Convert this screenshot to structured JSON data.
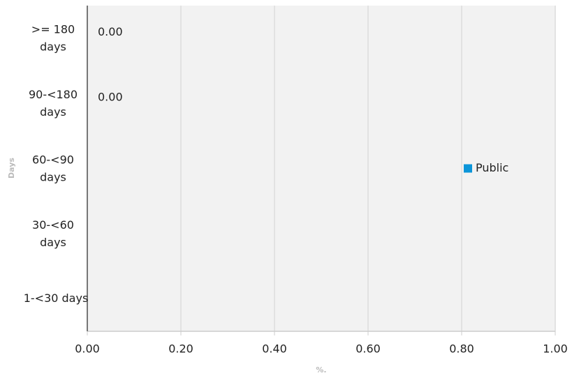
{
  "chart_data": {
    "type": "hbar",
    "categories": [
      ">= 180 days",
      "90-<180 days",
      "60-<90 days",
      "30-<60 days",
      "1-<30 days"
    ],
    "series": [
      {
        "name": "Public",
        "color": "#0b95d9",
        "values": [
          0,
          0,
          null,
          null,
          null
        ],
        "value_labels": [
          "0.00",
          "0.00",
          null,
          null,
          null
        ]
      }
    ],
    "xlim": [
      0,
      1
    ],
    "xticks": [
      {
        "value": 0,
        "label": "0.00"
      },
      {
        "value": 0.2,
        "label": "0.20"
      },
      {
        "value": 0.4,
        "label": "0.40"
      },
      {
        "value": 0.6,
        "label": "0.60"
      },
      {
        "value": 0.8,
        "label": "0.80"
      },
      {
        "value": 1,
        "label": "1.00"
      }
    ],
    "xlabel": "%.",
    "ylabel": "Days",
    "grid": true,
    "legend": "right"
  }
}
